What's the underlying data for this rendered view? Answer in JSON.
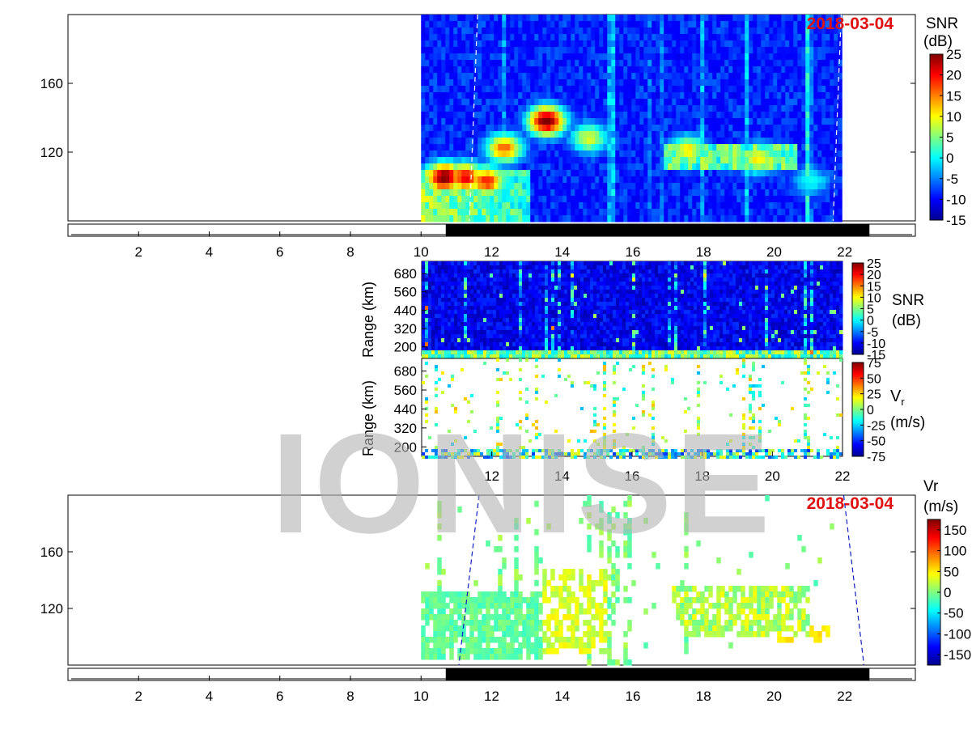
{
  "watermark": "IONISE",
  "colors": {
    "jet": [
      "#00008f",
      "#0000ff",
      "#0080ff",
      "#00ffff",
      "#80ff80",
      "#ffff00",
      "#ff8000",
      "#ff0000",
      "#800000"
    ],
    "day_bar": "#000000",
    "terminator": "#1020c0"
  },
  "chart_data": [
    {
      "id": "top-snr",
      "type": "heatmap",
      "date_label": "2018-03-04",
      "quantity": "SNR",
      "unit": "(dB)",
      "xlim": [
        0,
        24
      ],
      "x_ticks": [
        2,
        4,
        6,
        8,
        10,
        12,
        14,
        16,
        18,
        20,
        22
      ],
      "ylim": [
        80,
        200
      ],
      "y_ticks": [
        120,
        160
      ],
      "data_xrange": [
        10,
        21.9
      ],
      "color_range": [
        -15,
        25
      ],
      "colorbar_ticks": [
        25,
        20,
        15,
        10,
        5,
        0,
        -5,
        -10,
        -15
      ],
      "day_bar": [
        10.7,
        22.7
      ],
      "terminators": [
        11.6,
        21.9
      ],
      "features": [
        {
          "x": 10.6,
          "y": 107,
          "value": 25
        },
        {
          "x": 11.2,
          "y": 107,
          "value": 20
        },
        {
          "x": 11.8,
          "y": 105,
          "value": 18
        },
        {
          "x": 12.3,
          "y": 124,
          "value": 15
        },
        {
          "x": 13.5,
          "y": 140,
          "value": 25
        },
        {
          "x": 14.7,
          "y": 130,
          "value": 8
        },
        {
          "x": 17.5,
          "y": 123,
          "value": 10
        },
        {
          "x": 19.5,
          "y": 118,
          "value": 10
        },
        {
          "x": 21.0,
          "y": 105,
          "value": 0
        }
      ]
    },
    {
      "id": "mid-snr",
      "type": "heatmap",
      "ylabel": "Range (km)",
      "quantity": "SNR",
      "unit": "(dB)",
      "xlim": [
        10,
        22
      ],
      "ylim": [
        140,
        760
      ],
      "y_ticks": [
        200,
        320,
        440,
        560,
        680
      ],
      "color_range": [
        -15,
        25
      ],
      "colorbar_ticks": [
        25,
        20,
        15,
        10,
        5,
        0,
        -5,
        -10,
        -15
      ]
    },
    {
      "id": "mid-vr",
      "type": "heatmap",
      "ylabel": "Range (km)",
      "quantity_main": "V",
      "quantity_sub": "r",
      "unit": "(m/s)",
      "xlim": [
        10,
        22
      ],
      "x_ticks": [
        12,
        14,
        16,
        18,
        20,
        22
      ],
      "ylim": [
        140,
        760
      ],
      "y_ticks": [
        200,
        320,
        440,
        560,
        680
      ],
      "color_range": [
        -75,
        75
      ],
      "colorbar_ticks": [
        75,
        50,
        25,
        0,
        -25,
        -50,
        -75
      ]
    },
    {
      "id": "bottom-vr",
      "type": "heatmap",
      "date_label": "2018-03-04",
      "quantity": "Vr",
      "unit": "(m/s)",
      "xlim": [
        0,
        24
      ],
      "x_ticks": [
        2,
        4,
        6,
        8,
        10,
        12,
        14,
        16,
        18,
        20,
        22
      ],
      "ylim": [
        80,
        200
      ],
      "y_ticks": [
        120,
        160
      ],
      "data_xrange": [
        10,
        22
      ],
      "color_range": [
        -175,
        175
      ],
      "colorbar_ticks": [
        150,
        100,
        50,
        0,
        -50,
        -100,
        -150
      ],
      "day_bar": [
        10.7,
        22.7
      ],
      "terminators": [
        11.3,
        22.2
      ]
    }
  ]
}
